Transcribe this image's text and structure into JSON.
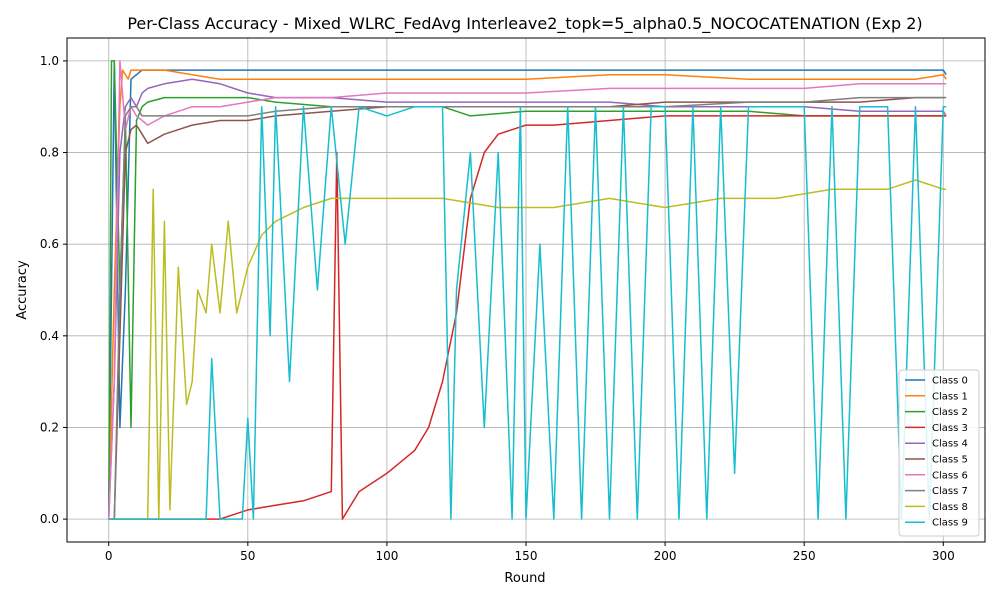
{
  "chart_data": {
    "type": "line",
    "title": "Per-Class Accuracy - Mixed_WLRC_FedAvg Interleave2_topk=5_alpha0.5_NOCOCATENATION (Exp 2)",
    "xlabel": "Round",
    "ylabel": "Accuracy",
    "xlim": [
      -15,
      315
    ],
    "ylim": [
      -0.05,
      1.05
    ],
    "xticks": [
      0,
      50,
      100,
      150,
      200,
      250,
      300
    ],
    "yticks": [
      0.0,
      0.2,
      0.4,
      0.6,
      0.8,
      1.0
    ],
    "grid": true,
    "legend_position": "lower right",
    "series": [
      {
        "name": "Class 0",
        "color": "#1f77b4",
        "x": [
          0,
          2,
          4,
          6,
          8,
          10,
          12,
          14,
          16,
          20,
          30,
          40,
          50,
          60,
          80,
          100,
          120,
          150,
          180,
          200,
          230,
          250,
          270,
          290,
          298,
          300,
          301
        ],
        "values": [
          0.0,
          1.0,
          0.2,
          0.5,
          0.96,
          0.97,
          0.98,
          0.98,
          0.98,
          0.98,
          0.98,
          0.98,
          0.98,
          0.98,
          0.98,
          0.98,
          0.98,
          0.98,
          0.98,
          0.98,
          0.98,
          0.98,
          0.98,
          0.98,
          0.98,
          0.98,
          0.97
        ]
      },
      {
        "name": "Class 1",
        "color": "#ff7f0e",
        "x": [
          0,
          2,
          4,
          5,
          7,
          8,
          10,
          14,
          20,
          30,
          40,
          50,
          60,
          80,
          100,
          120,
          150,
          180,
          200,
          230,
          250,
          270,
          290,
          300,
          301
        ],
        "values": [
          0.0,
          0.5,
          0.9,
          0.98,
          0.96,
          0.98,
          0.98,
          0.98,
          0.98,
          0.97,
          0.96,
          0.96,
          0.96,
          0.96,
          0.96,
          0.96,
          0.96,
          0.97,
          0.97,
          0.96,
          0.96,
          0.96,
          0.96,
          0.97,
          0.96
        ]
      },
      {
        "name": "Class 2",
        "color": "#2ca02c",
        "x": [
          0,
          1,
          2,
          4,
          6,
          8,
          10,
          12,
          14,
          20,
          30,
          40,
          50,
          60,
          80,
          100,
          120,
          130,
          150,
          180,
          200,
          230,
          250,
          270,
          290,
          300,
          301
        ],
        "values": [
          0.0,
          1.0,
          1.0,
          0.5,
          0.87,
          0.2,
          0.87,
          0.9,
          0.91,
          0.92,
          0.92,
          0.92,
          0.92,
          0.91,
          0.9,
          0.9,
          0.9,
          0.88,
          0.89,
          0.89,
          0.89,
          0.89,
          0.88,
          0.88,
          0.88,
          0.88,
          0.88
        ]
      },
      {
        "name": "Class 3",
        "color": "#d62728",
        "x": [
          0,
          2,
          4,
          6,
          8,
          10,
          12,
          14,
          20,
          30,
          40,
          50,
          60,
          70,
          80,
          82,
          84,
          90,
          100,
          110,
          115,
          120,
          125,
          130,
          135,
          140,
          150,
          160,
          180,
          200,
          250,
          300,
          301
        ],
        "values": [
          0.0,
          0.0,
          0.0,
          0.0,
          0.0,
          0.0,
          0.0,
          0.0,
          0.0,
          0.0,
          0.0,
          0.02,
          0.03,
          0.04,
          0.06,
          0.8,
          0.0,
          0.06,
          0.1,
          0.15,
          0.2,
          0.3,
          0.45,
          0.7,
          0.8,
          0.84,
          0.86,
          0.86,
          0.87,
          0.88,
          0.88,
          0.88,
          0.88
        ]
      },
      {
        "name": "Class 4",
        "color": "#9467bd",
        "x": [
          0,
          2,
          4,
          6,
          8,
          10,
          12,
          14,
          20,
          30,
          40,
          50,
          60,
          80,
          100,
          120,
          150,
          180,
          200,
          230,
          250,
          270,
          290,
          300,
          301
        ],
        "values": [
          0.0,
          0.3,
          0.8,
          0.9,
          0.92,
          0.9,
          0.93,
          0.94,
          0.95,
          0.96,
          0.95,
          0.93,
          0.92,
          0.92,
          0.91,
          0.91,
          0.91,
          0.91,
          0.9,
          0.9,
          0.9,
          0.89,
          0.89,
          0.89,
          0.88
        ]
      },
      {
        "name": "Class 5",
        "color": "#8c564b",
        "x": [
          0,
          2,
          4,
          6,
          8,
          10,
          12,
          14,
          20,
          30,
          40,
          50,
          60,
          80,
          100,
          120,
          150,
          180,
          200,
          230,
          250,
          270,
          290,
          300,
          301
        ],
        "values": [
          0.0,
          0.0,
          0.4,
          0.8,
          0.85,
          0.86,
          0.84,
          0.82,
          0.84,
          0.86,
          0.87,
          0.87,
          0.88,
          0.89,
          0.9,
          0.9,
          0.9,
          0.9,
          0.91,
          0.91,
          0.91,
          0.91,
          0.92,
          0.92,
          0.92
        ]
      },
      {
        "name": "Class 6",
        "color": "#e377c2",
        "x": [
          0,
          2,
          4,
          6,
          8,
          10,
          12,
          14,
          20,
          30,
          40,
          50,
          60,
          80,
          100,
          120,
          150,
          180,
          200,
          230,
          250,
          270,
          290,
          300,
          301
        ],
        "values": [
          0.0,
          0.3,
          1.0,
          0.85,
          0.9,
          0.88,
          0.87,
          0.86,
          0.88,
          0.9,
          0.9,
          0.91,
          0.92,
          0.92,
          0.93,
          0.93,
          0.93,
          0.94,
          0.94,
          0.94,
          0.94,
          0.95,
          0.95,
          0.95,
          0.95
        ]
      },
      {
        "name": "Class 7",
        "color": "#7f7f7f",
        "x": [
          0,
          2,
          4,
          6,
          8,
          10,
          12,
          14,
          20,
          30,
          40,
          50,
          60,
          80,
          100,
          120,
          150,
          180,
          200,
          230,
          250,
          270,
          290,
          300,
          301
        ],
        "values": [
          0.0,
          0.0,
          0.5,
          0.88,
          0.9,
          0.9,
          0.88,
          0.88,
          0.88,
          0.88,
          0.88,
          0.88,
          0.89,
          0.9,
          0.9,
          0.9,
          0.9,
          0.9,
          0.9,
          0.91,
          0.91,
          0.92,
          0.92,
          0.92,
          0.92
        ]
      },
      {
        "name": "Class 8",
        "color": "#bcbd22",
        "x": [
          0,
          5,
          10,
          14,
          16,
          18,
          20,
          22,
          25,
          28,
          30,
          32,
          35,
          37,
          40,
          43,
          46,
          50,
          55,
          60,
          70,
          80,
          90,
          100,
          120,
          140,
          160,
          180,
          200,
          220,
          240,
          260,
          280,
          290,
          300,
          301
        ],
        "values": [
          0.0,
          0.0,
          0.0,
          0.0,
          0.72,
          0.0,
          0.65,
          0.02,
          0.55,
          0.25,
          0.3,
          0.5,
          0.45,
          0.6,
          0.45,
          0.65,
          0.45,
          0.55,
          0.62,
          0.65,
          0.68,
          0.7,
          0.7,
          0.7,
          0.7,
          0.68,
          0.68,
          0.7,
          0.68,
          0.7,
          0.7,
          0.72,
          0.72,
          0.74,
          0.72,
          0.72
        ]
      },
      {
        "name": "Class 9",
        "color": "#17becf",
        "x": [
          0,
          10,
          14,
          20,
          30,
          35,
          37,
          40,
          45,
          48,
          50,
          52,
          55,
          58,
          60,
          65,
          70,
          75,
          80,
          85,
          90,
          100,
          110,
          120,
          123,
          125,
          130,
          135,
          140,
          145,
          148,
          150,
          155,
          160,
          165,
          170,
          175,
          180,
          185,
          190,
          195,
          200,
          205,
          210,
          215,
          220,
          225,
          230,
          240,
          250,
          255,
          260,
          265,
          270,
          275,
          280,
          285,
          290,
          295,
          300,
          301
        ],
        "values": [
          0.0,
          0.0,
          0.0,
          0.0,
          0.0,
          0.0,
          0.35,
          0.0,
          0.0,
          0.0,
          0.22,
          0.0,
          0.9,
          0.4,
          0.9,
          0.3,
          0.9,
          0.5,
          0.9,
          0.6,
          0.9,
          0.88,
          0.9,
          0.9,
          0.0,
          0.5,
          0.8,
          0.2,
          0.8,
          0.0,
          0.9,
          0.0,
          0.6,
          0.0,
          0.9,
          0.0,
          0.9,
          0.0,
          0.9,
          0.0,
          0.9,
          0.9,
          0.0,
          0.9,
          0.0,
          0.9,
          0.1,
          0.9,
          0.9,
          0.9,
          0.0,
          0.9,
          0.0,
          0.9,
          0.9,
          0.9,
          0.0,
          0.9,
          0.0,
          0.9,
          0.9
        ]
      }
    ]
  }
}
